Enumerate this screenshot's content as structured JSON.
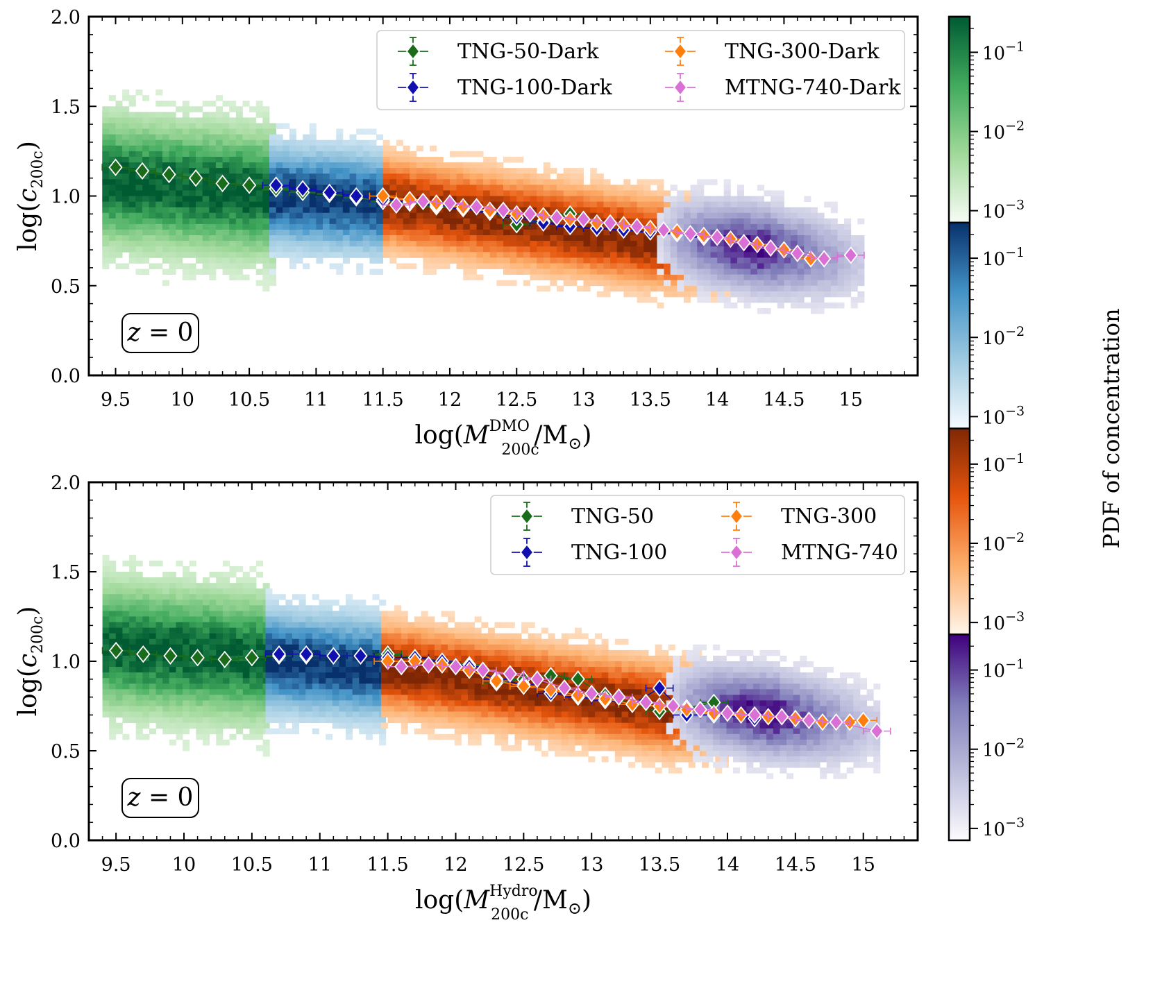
{
  "chart_data": [
    {
      "type": "scatter",
      "panel": "top",
      "xlabel": {
        "pre": "log(",
        "main": "M",
        "sup": "DMO",
        "sub": "200c",
        "post": "/M",
        "sunsym": "⊙",
        "close": ")"
      },
      "ylabel": {
        "pre": "log(",
        "main": "c",
        "sub": "200c",
        "close": ")"
      },
      "xlim": [
        9.3,
        15.5
      ],
      "ylim": [
        0.0,
        2.0
      ],
      "xticks": [
        9.5,
        10,
        10.5,
        11,
        11.5,
        12,
        12.5,
        13,
        13.5,
        14,
        14.5,
        15
      ],
      "xtick_labels": [
        "9.5",
        "10",
        "10.5",
        "11",
        "11.5",
        "12",
        "12.5",
        "13",
        "13.5",
        "14",
        "14.5",
        "15"
      ],
      "yticks": [
        0.0,
        0.5,
        1.0,
        1.5,
        2.0
      ],
      "ytick_labels": [
        "0.0",
        "0.5",
        "1.0",
        "1.5",
        "2.0"
      ],
      "annotation": {
        "var": "z",
        "eq": " = 0"
      },
      "legend_position": "top-right",
      "series": [
        {
          "name": "TNG-50-Dark",
          "color": "#1a6b1a",
          "x": [
            9.5,
            9.7,
            9.9,
            10.1,
            10.3,
            10.5,
            10.7,
            10.9,
            11.1,
            11.3,
            11.5,
            11.7,
            11.9,
            12.1,
            12.3,
            12.5,
            12.7,
            12.9
          ],
          "y": [
            1.16,
            1.14,
            1.12,
            1.1,
            1.07,
            1.06,
            1.04,
            1.02,
            1.01,
            0.99,
            0.97,
            0.96,
            0.94,
            0.93,
            0.92,
            0.84,
            0.86,
            0.9
          ],
          "xerr": 0.1
        },
        {
          "name": "TNG-100-Dark",
          "color": "#1010b0",
          "x": [
            10.7,
            10.9,
            11.1,
            11.3,
            11.5,
            11.7,
            11.9,
            12.1,
            12.3,
            12.5,
            12.7,
            12.9,
            13.1,
            13.3,
            13.5,
            13.7,
            13.9
          ],
          "y": [
            1.06,
            1.04,
            1.02,
            1.0,
            0.98,
            0.97,
            0.95,
            0.93,
            0.91,
            0.88,
            0.85,
            0.83,
            0.82,
            0.81,
            0.8,
            0.79,
            0.77
          ],
          "xerr": 0.1
        },
        {
          "name": "TNG-300-Dark",
          "color": "#ff7f0e",
          "x": [
            11.5,
            11.7,
            11.9,
            12.1,
            12.3,
            12.5,
            12.7,
            12.9,
            13.1,
            13.3,
            13.5,
            13.7,
            13.9,
            14.1,
            14.3,
            14.5,
            14.7
          ],
          "y": [
            1.0,
            0.98,
            0.96,
            0.94,
            0.92,
            0.9,
            0.89,
            0.87,
            0.85,
            0.84,
            0.82,
            0.8,
            0.78,
            0.76,
            0.73,
            0.7,
            0.65
          ],
          "xerr": 0.1
        },
        {
          "name": "MTNG-740-Dark",
          "color": "#da70d6",
          "x": [
            11.6,
            11.8,
            12.0,
            12.2,
            12.4,
            12.6,
            12.8,
            13.0,
            13.2,
            13.4,
            13.6,
            13.8,
            14.0,
            14.2,
            14.4,
            14.6,
            14.8,
            15.0
          ],
          "y": [
            0.95,
            0.97,
            0.96,
            0.94,
            0.92,
            0.9,
            0.88,
            0.87,
            0.85,
            0.83,
            0.81,
            0.79,
            0.77,
            0.74,
            0.71,
            0.68,
            0.65,
            0.67
          ],
          "xerr": 0.1
        }
      ]
    },
    {
      "type": "scatter",
      "panel": "bottom",
      "xlabel": {
        "pre": "log(",
        "main": "M",
        "sup": "Hydro",
        "sub": "200c",
        "post": "/M",
        "sunsym": "⊙",
        "close": ")"
      },
      "ylabel": {
        "pre": "log(",
        "main": "c",
        "sub": "200c",
        "close": ")"
      },
      "xlim": [
        9.3,
        15.4
      ],
      "ylim": [
        0.0,
        2.0
      ],
      "xticks": [
        9.5,
        10,
        10.5,
        11,
        11.5,
        12,
        12.5,
        13,
        13.5,
        14,
        14.5,
        15
      ],
      "xtick_labels": [
        "9.5",
        "10",
        "10.5",
        "11",
        "11.5",
        "12",
        "12.5",
        "13",
        "13.5",
        "14",
        "14.5",
        "15"
      ],
      "yticks": [
        0.0,
        0.5,
        1.0,
        1.5,
        2.0
      ],
      "ytick_labels": [
        "0.0",
        "0.5",
        "1.0",
        "1.5",
        "2.0"
      ],
      "annotation": {
        "var": "z",
        "eq": " = 0"
      },
      "legend_position": "top-right",
      "series": [
        {
          "name": "TNG-50",
          "color": "#1a6b1a",
          "x": [
            9.5,
            9.7,
            9.9,
            10.1,
            10.3,
            10.5,
            10.7,
            10.9,
            11.1,
            11.3,
            11.5,
            11.7,
            11.9,
            12.1,
            12.3,
            12.5,
            12.7,
            12.9,
            13.1,
            13.3,
            13.5,
            13.7,
            13.9
          ],
          "y": [
            1.06,
            1.04,
            1.03,
            1.02,
            1.01,
            1.02,
            1.03,
            1.03,
            1.03,
            1.03,
            1.04,
            1.02,
            1.0,
            0.98,
            0.88,
            0.9,
            0.92,
            0.9,
            0.81,
            0.76,
            0.72,
            0.74,
            0.77
          ],
          "xerr": 0.1
        },
        {
          "name": "TNG-100",
          "color": "#1010b0",
          "x": [
            10.7,
            10.9,
            11.1,
            11.3,
            11.5,
            11.7,
            11.9,
            12.1,
            12.3,
            12.5,
            12.7,
            12.9,
            13.1,
            13.3,
            13.5,
            13.7,
            13.9,
            14.2
          ],
          "y": [
            1.04,
            1.04,
            1.03,
            1.03,
            1.02,
            1.02,
            1.0,
            0.97,
            0.9,
            0.87,
            0.82,
            0.8,
            0.78,
            0.76,
            0.85,
            0.7,
            0.7,
            0.68
          ],
          "xerr": 0.1
        },
        {
          "name": "TNG-300",
          "color": "#ff7f0e",
          "x": [
            11.5,
            11.7,
            11.9,
            12.1,
            12.3,
            12.5,
            12.7,
            12.9,
            13.1,
            13.3,
            13.5,
            13.7,
            13.9,
            14.1,
            14.3,
            14.5,
            14.7,
            14.9,
            15.0
          ],
          "y": [
            1.0,
            1.0,
            0.98,
            0.95,
            0.89,
            0.86,
            0.84,
            0.81,
            0.79,
            0.76,
            0.75,
            0.73,
            0.71,
            0.7,
            0.69,
            0.68,
            0.66,
            0.66,
            0.67
          ],
          "xerr": 0.1
        },
        {
          "name": "MTNG-740",
          "color": "#da70d6",
          "x": [
            11.6,
            11.8,
            12.0,
            12.2,
            12.4,
            12.6,
            12.8,
            13.0,
            13.2,
            13.4,
            13.6,
            13.8,
            14.0,
            14.2,
            14.4,
            14.6,
            14.8,
            15.1
          ],
          "y": [
            0.97,
            0.98,
            0.97,
            0.95,
            0.93,
            0.9,
            0.85,
            0.82,
            0.8,
            0.77,
            0.75,
            0.73,
            0.71,
            0.7,
            0.69,
            0.67,
            0.66,
            0.61
          ],
          "xerr": 0.1
        }
      ]
    }
  ],
  "colorbar": {
    "label": "PDF of concentration",
    "segments": [
      {
        "colors": [
          "#f7fcf5",
          "#a1d99b",
          "#41ab5d",
          "#005a32"
        ],
        "tick_labels": [
          {
            "base": "10",
            "exp": "−1"
          },
          {
            "base": "10",
            "exp": "−2"
          },
          {
            "base": "10",
            "exp": "−3"
          }
        ]
      },
      {
        "colors": [
          "#f7fbff",
          "#9ecae1",
          "#4292c6",
          "#08306b"
        ],
        "tick_labels": [
          {
            "base": "10",
            "exp": "−1"
          },
          {
            "base": "10",
            "exp": "−2"
          },
          {
            "base": "10",
            "exp": "−3"
          }
        ]
      },
      {
        "colors": [
          "#fff5eb",
          "#fdae6b",
          "#e6550d",
          "#7f2704"
        ],
        "tick_labels": [
          {
            "base": "10",
            "exp": "−1"
          },
          {
            "base": "10",
            "exp": "−2"
          },
          {
            "base": "10",
            "exp": "−3"
          }
        ]
      },
      {
        "colors": [
          "#fcfbfd",
          "#bcbddc",
          "#807dba",
          "#3f007d"
        ],
        "tick_labels": [
          {
            "base": "10",
            "exp": "−1"
          },
          {
            "base": "10",
            "exp": "−2"
          },
          {
            "base": "10",
            "exp": "−3"
          }
        ]
      }
    ]
  }
}
